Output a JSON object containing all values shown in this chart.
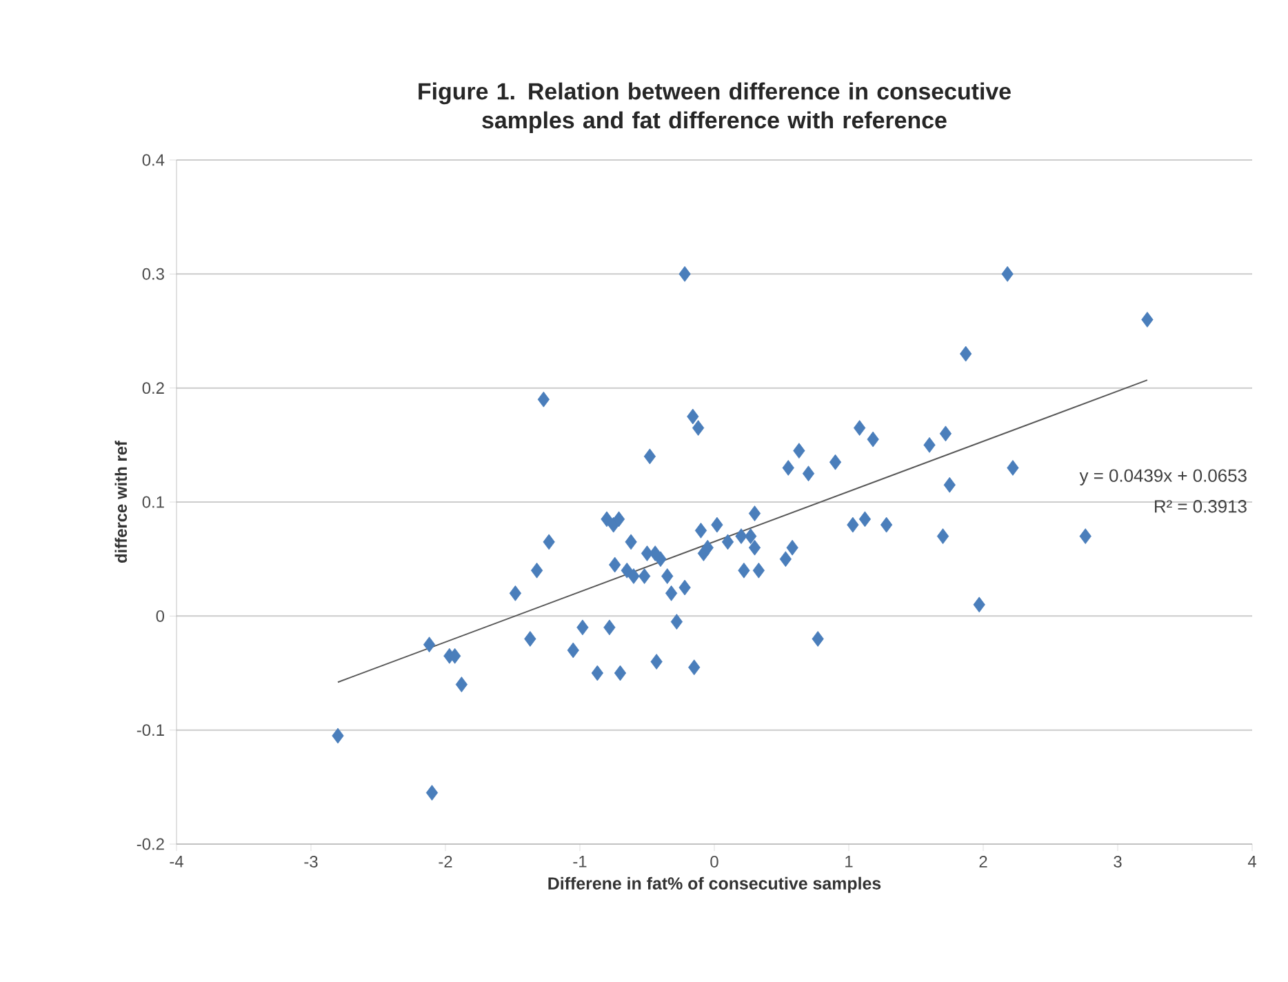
{
  "chart_data": {
    "type": "scatter",
    "title": "Figure 1. Relation between difference in consecutive samples and fat difference with reference",
    "xlabel": "Differene in fat% of consecutive samples",
    "ylabel": "differce with ref",
    "xlim": [
      -4,
      4
    ],
    "xticks": [
      -4,
      -3,
      -2,
      -1,
      0,
      1,
      2,
      3,
      4
    ],
    "ylim": [
      -0.2,
      0.4
    ],
    "yticks": [
      -0.2,
      -0.1,
      0,
      0.1,
      0.2,
      0.3,
      0.4
    ],
    "grid": "y",
    "series": [
      {
        "color": "#4a7ebb",
        "marker": "diamond",
        "x": [
          -2.8,
          -2.1,
          -2.12,
          -1.97,
          -1.93,
          -1.88,
          -1.48,
          -1.37,
          -1.32,
          -1.27,
          -1.23,
          -1.05,
          -0.98,
          -0.87,
          -0.8,
          -0.78,
          -0.74,
          -0.75,
          -0.71,
          -0.7,
          -0.65,
          -0.62,
          -0.6,
          -0.52,
          -0.5,
          -0.48,
          -0.44,
          -0.43,
          -0.4,
          -0.35,
          -0.32,
          -0.28,
          -0.22,
          -0.22,
          -0.16,
          -0.15,
          -0.12,
          -0.1,
          -0.08,
          -0.05,
          0.02,
          0.1,
          0.2,
          0.22,
          0.27,
          0.3,
          0.3,
          0.33,
          0.53,
          0.55,
          0.58,
          0.63,
          0.7,
          0.77,
          0.9,
          1.03,
          1.08,
          1.12,
          1.18,
          1.28,
          1.6,
          1.7,
          1.72,
          1.75,
          1.87,
          1.97,
          2.18,
          2.22,
          2.76,
          3.22
        ],
        "values": [
          -0.105,
          -0.155,
          -0.025,
          -0.035,
          -0.035,
          -0.06,
          0.02,
          -0.02,
          0.04,
          0.19,
          0.065,
          -0.03,
          -0.01,
          -0.05,
          0.085,
          -0.01,
          0.045,
          0.08,
          0.085,
          -0.05,
          0.04,
          0.065,
          0.035,
          0.035,
          0.055,
          0.14,
          0.055,
          -0.04,
          0.05,
          0.035,
          0.02,
          -0.005,
          0.3,
          0.025,
          0.175,
          -0.045,
          0.165,
          0.075,
          0.055,
          0.06,
          0.08,
          0.065,
          0.07,
          0.04,
          0.07,
          0.06,
          0.09,
          0.04,
          0.05,
          0.13,
          0.06,
          0.145,
          0.125,
          -0.02,
          0.135,
          0.08,
          0.165,
          0.085,
          0.155,
          0.08,
          0.15,
          0.07,
          0.16,
          0.115,
          0.23,
          0.01,
          0.3,
          0.13,
          0.07,
          0.26
        ]
      },
      {
        "type": "line",
        "marker": "none",
        "color": "#595959",
        "x": [
          -2.8,
          3.22
        ],
        "values": [
          -0.058,
          0.207
        ]
      }
    ],
    "annotations": [
      "y = 0.0439x + 0.0653",
      "R² = 0.3913"
    ]
  }
}
